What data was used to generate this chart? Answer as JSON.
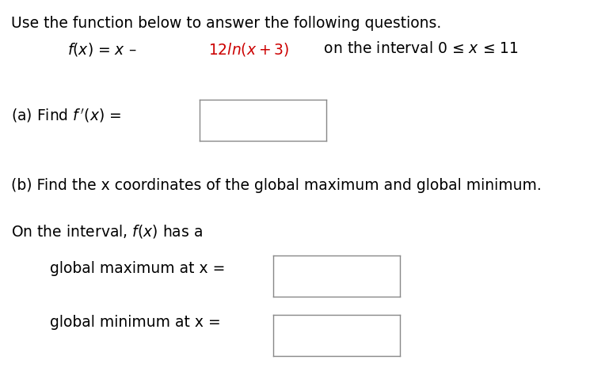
{
  "bg_color": "#ffffff",
  "text_color": "#000000",
  "red_color": "#cc0000",
  "line1": "Use the function below to answer the following questions.",
  "part_b_label": "(b) Find the x coordinates of the global maximum and global minimum.",
  "part_on": "On the interval, f(x) has a",
  "global_max_label": "global maximum at x =",
  "global_min_label": "global minimum at x ="
}
